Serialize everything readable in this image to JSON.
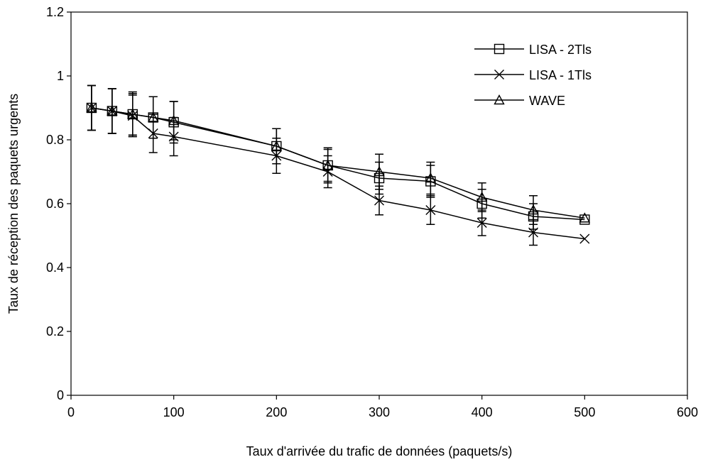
{
  "chart_data": {
    "type": "line",
    "title": "",
    "xlabel": "Taux d'arrivée du trafic de données (paquets/s)",
    "ylabel": "Taux de réception des paquets urgents",
    "xlim": [
      0,
      600
    ],
    "ylim": [
      0,
      1.2
    ],
    "xticks": [
      0,
      100,
      200,
      300,
      400,
      500,
      600
    ],
    "yticks": [
      0,
      0.2,
      0.4,
      0.6,
      0.8,
      1,
      1.2
    ],
    "xtick_labels": [
      "0",
      "100",
      "200",
      "300",
      "400",
      "500",
      "600"
    ],
    "ytick_labels": [
      "0",
      "0.2",
      "0.4",
      "0.6",
      "0.8",
      "1",
      "1.2"
    ],
    "grid": false,
    "legend_position": "top-right",
    "x": [
      20,
      40,
      60,
      80,
      100,
      200,
      250,
      300,
      350,
      400,
      450,
      500
    ],
    "series": [
      {
        "name": "LISA - 2Tls",
        "marker": "square",
        "values": [
          0.9,
          0.89,
          0.88,
          0.87,
          0.855,
          0.78,
          0.72,
          0.68,
          0.67,
          0.6,
          0.56,
          0.55
        ],
        "errors": [
          0.07,
          0.07,
          0.065,
          0.065,
          0.065,
          0.055,
          0.05,
          0.05,
          0.05,
          0.045,
          0.04,
          0.0
        ]
      },
      {
        "name": "LISA - 1Tls",
        "marker": "x",
        "values": [
          0.9,
          0.89,
          0.875,
          0.82,
          0.81,
          0.75,
          0.7,
          0.61,
          0.58,
          0.54,
          0.51,
          0.49
        ],
        "errors": [
          0.07,
          0.07,
          0.065,
          0.06,
          0.06,
          0.055,
          0.05,
          0.045,
          0.045,
          0.04,
          0.04,
          0.0
        ]
      },
      {
        "name": "WAVE",
        "marker": "triangle",
        "values": [
          0.9,
          0.89,
          0.88,
          0.87,
          0.86,
          0.78,
          0.72,
          0.7,
          0.68,
          0.62,
          0.58,
          0.555
        ],
        "errors": [
          0.07,
          0.07,
          0.07,
          0.065,
          0.06,
          0.055,
          0.055,
          0.055,
          0.05,
          0.045,
          0.045,
          0.0
        ]
      }
    ]
  }
}
